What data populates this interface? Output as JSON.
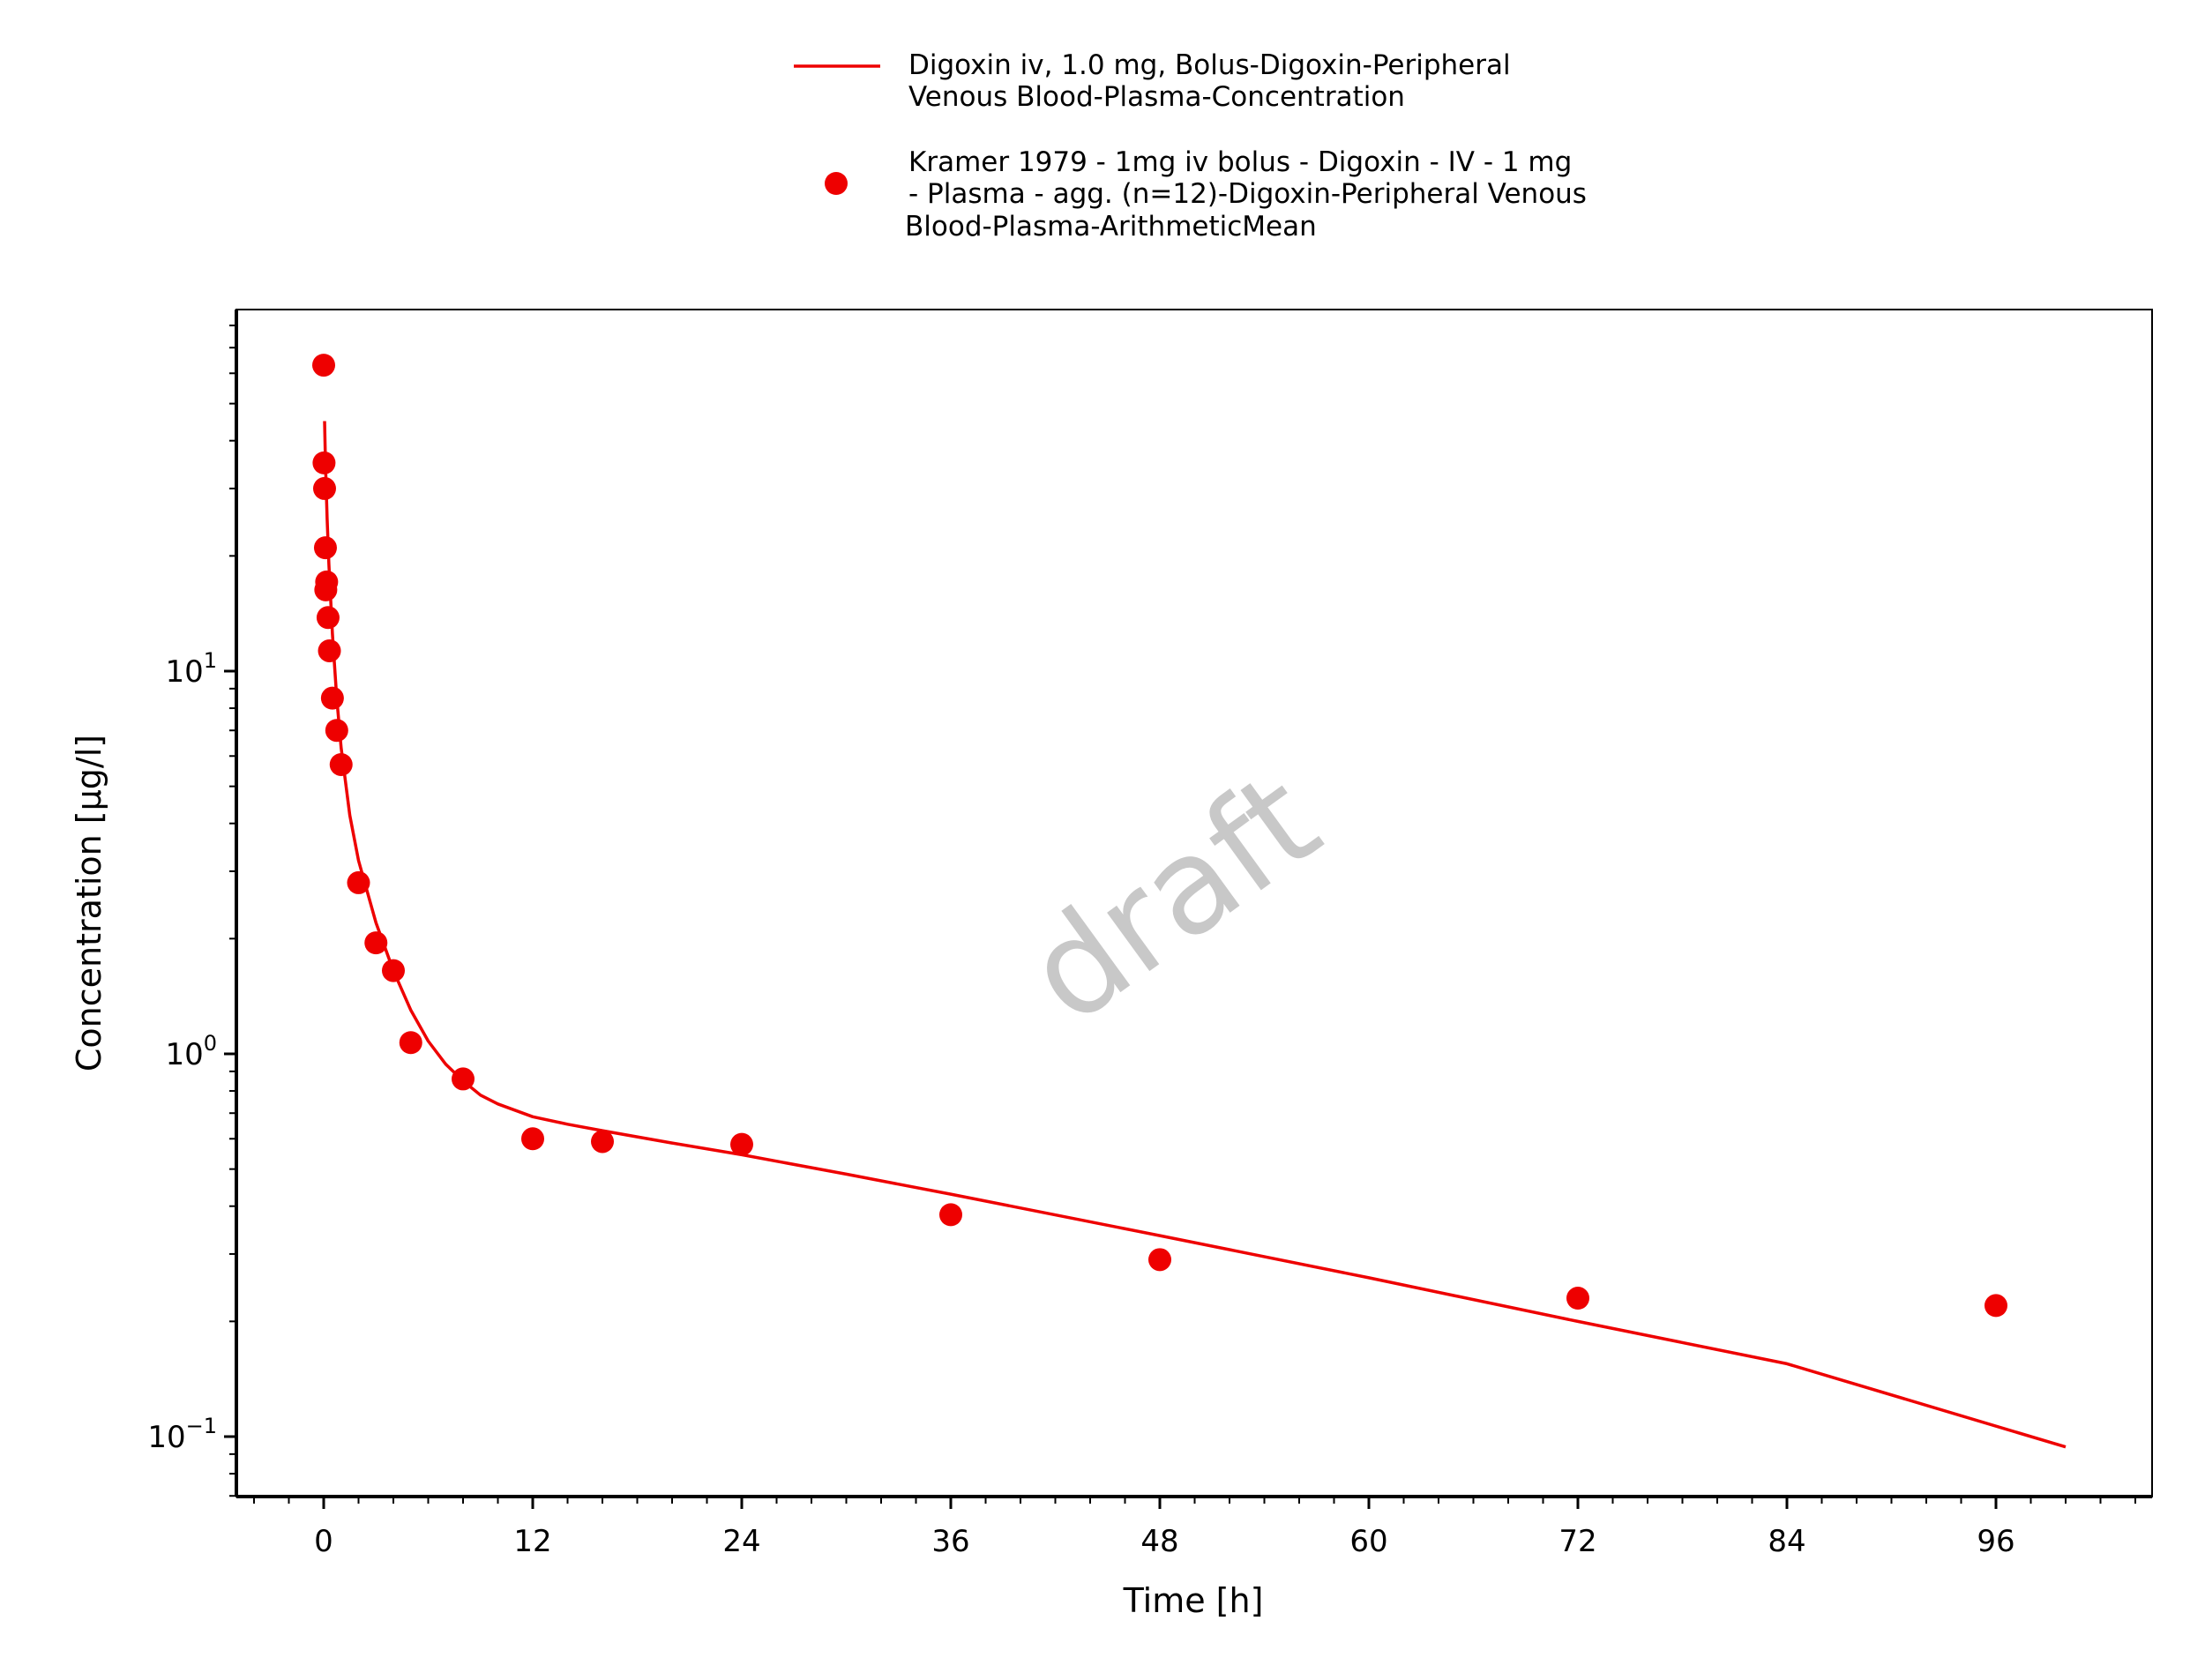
{
  "chart_data": {
    "type": "line",
    "xlabel": "Time [h]",
    "ylabel": "Concentration [µg/l]",
    "xlim": [
      -5,
      105
    ],
    "ylim": [
      0.07,
      70
    ],
    "yscale": "log",
    "grid": false,
    "legend_position": "top-center",
    "watermark": "draft",
    "x_ticks": [
      0,
      12,
      24,
      36,
      48,
      60,
      72,
      84,
      96
    ],
    "x_tick_labels": [
      "0",
      "12",
      "24",
      "36",
      "48",
      "60",
      "72",
      "84",
      "96"
    ],
    "y_ticks": [
      {
        "value": 10,
        "base": "10",
        "exp": "1"
      },
      {
        "value": 1,
        "base": "10",
        "exp": "0"
      },
      {
        "value": 0.1,
        "base": "10",
        "exp": "−1"
      }
    ],
    "series": [
      {
        "kind": "line",
        "color": "#ee0000",
        "legend_lines": [
          "Digoxin iv, 1.0 mg, Bolus-Digoxin-Peripheral",
          "Venous Blood-Plasma-Concentration"
        ],
        "x": [
          0.05,
          0.1,
          0.2,
          0.3,
          0.5,
          0.75,
          1,
          1.5,
          2,
          3,
          4,
          5,
          6,
          7,
          8,
          9,
          10,
          12,
          14,
          16,
          20,
          24,
          30,
          36,
          48,
          60,
          72,
          84,
          100
        ],
        "y": [
          45,
          35,
          25,
          19,
          12.5,
          8.5,
          6.3,
          4.2,
          3.2,
          2.2,
          1.65,
          1.3,
          1.08,
          0.94,
          0.85,
          0.78,
          0.74,
          0.685,
          0.655,
          0.63,
          0.585,
          0.545,
          0.485,
          0.43,
          0.335,
          0.26,
          0.2,
          0.155,
          0.094
        ]
      },
      {
        "kind": "scatter",
        "color": "#ee0000",
        "legend_lines": [
          "Kramer 1979 - 1mg iv bolus - Digoxin - IV - 1 mg",
          "- Plasma - agg. (n=12)-Digoxin-Peripheral Venous",
          "Blood-Plasma-ArithmeticMean"
        ],
        "x": [
          0.0,
          0.02,
          0.05,
          0.1,
          0.12,
          0.17,
          0.25,
          0.33,
          0.5,
          0.75,
          1,
          2,
          3,
          4,
          5,
          8,
          12,
          16,
          24,
          36,
          48,
          72,
          96
        ],
        "y": [
          63,
          35,
          30,
          21,
          16.3,
          17.1,
          13.8,
          11.3,
          8.5,
          7.0,
          5.7,
          2.8,
          1.95,
          1.65,
          1.07,
          0.86,
          0.6,
          0.59,
          0.58,
          0.38,
          0.29,
          0.23,
          0.22
        ]
      }
    ]
  }
}
